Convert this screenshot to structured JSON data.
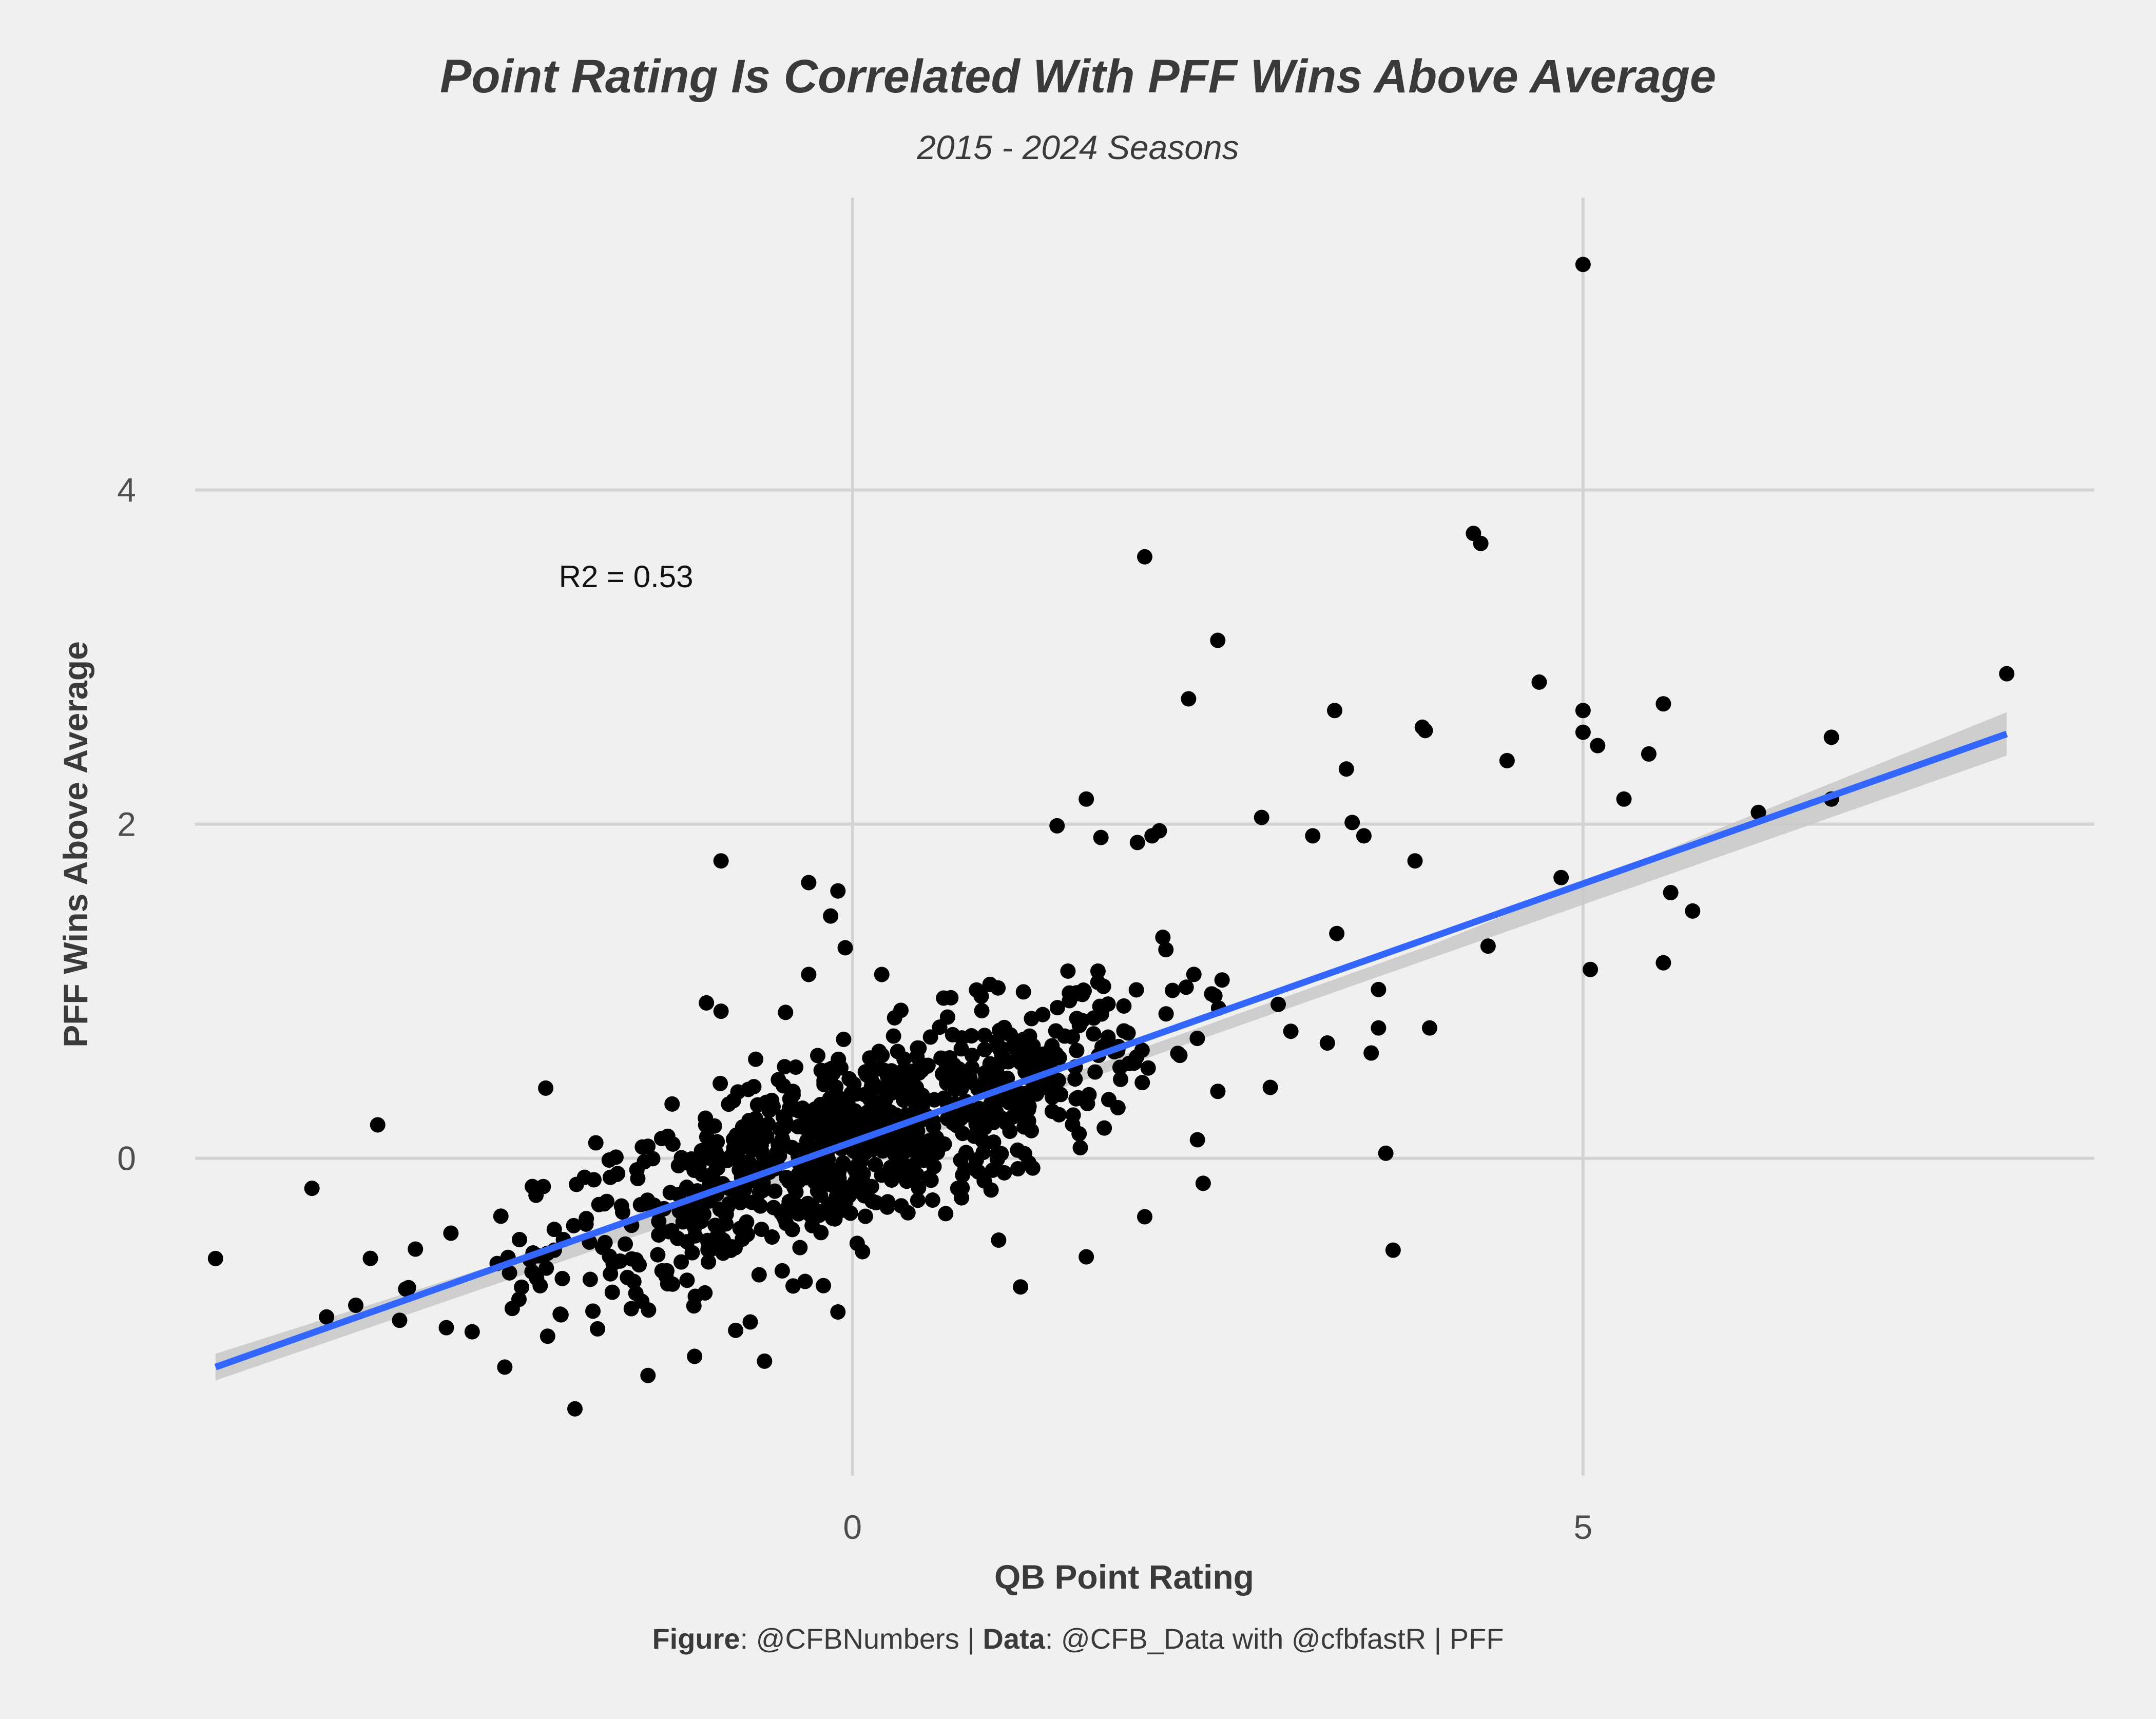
{
  "colors": {
    "background": "#f0f0f0",
    "grid": "#d3d3d3",
    "point": "#000000",
    "fit_line": "#3366ff",
    "confidence_band": "#c8c8c8",
    "title_text": "#3a3a3a",
    "tick_text": "#4d4d4d"
  },
  "caption": {
    "figure_bold": "Figure",
    "figure_text": ": @CFBNumbers | ",
    "data_bold": "Data",
    "data_text": ": @CFB_Data with @cfbfastR | PFF"
  },
  "chart_data": {
    "type": "scatter",
    "title": "Point Rating Is Correlated With PFF Wins Above Average",
    "subtitle": "2015 - 2024 Seasons",
    "xlabel": "QB Point Rating",
    "ylabel": "PFF Wins Above Average",
    "xlim": [
      -4.5,
      8.5
    ],
    "ylim": [
      -1.9,
      5.75
    ],
    "x_ticks": [
      0,
      5
    ],
    "y_ticks": [
      0,
      2,
      4
    ],
    "x_tick_labels": [
      "0",
      "5"
    ],
    "y_tick_labels": [
      "0",
      "2",
      "4"
    ],
    "grid": true,
    "annotation": "R2 = 0.53",
    "annotation_position": [
      -1.55,
      3.48
    ],
    "fit_line": {
      "x": [
        -4.36,
        7.9
      ],
      "y": [
        -1.25,
        2.54
      ]
    },
    "confidence_band": {
      "x": [
        -4.36,
        0,
        4,
        7.9
      ],
      "low": [
        -1.33,
        -0.02,
        1.21,
        2.41
      ],
      "high": [
        -1.17,
        0.04,
        1.29,
        2.67
      ]
    },
    "point_count": 960,
    "highlighted_points": [
      [
        5.0,
        5.35
      ],
      [
        4.25,
        3.74
      ],
      [
        4.3,
        3.68
      ],
      [
        2.0,
        3.6
      ],
      [
        2.5,
        3.1
      ],
      [
        7.9,
        2.9
      ],
      [
        4.7,
        2.85
      ],
      [
        2.3,
        2.75
      ],
      [
        3.3,
        2.68
      ],
      [
        5.0,
        2.68
      ],
      [
        5.55,
        2.72
      ],
      [
        3.9,
        2.58
      ],
      [
        3.92,
        2.56
      ],
      [
        5.0,
        2.55
      ],
      [
        5.1,
        2.47
      ],
      [
        6.7,
        2.52
      ],
      [
        5.45,
        2.42
      ],
      [
        4.48,
        2.38
      ],
      [
        3.38,
        2.33
      ],
      [
        1.6,
        2.15
      ],
      [
        5.28,
        2.15
      ],
      [
        6.7,
        2.15
      ],
      [
        6.2,
        2.07
      ],
      [
        2.8,
        2.04
      ],
      [
        3.42,
        2.01
      ],
      [
        1.4,
        1.99
      ],
      [
        2.1,
        1.96
      ],
      [
        2.05,
        1.93
      ],
      [
        1.7,
        1.92
      ],
      [
        3.5,
        1.93
      ],
      [
        3.15,
        1.93
      ],
      [
        1.95,
        1.89
      ],
      [
        3.85,
        1.78
      ],
      [
        -0.9,
        1.78
      ],
      [
        4.85,
        1.68
      ],
      [
        5.6,
        1.59
      ],
      [
        5.75,
        1.48
      ],
      [
        4.35,
        1.27
      ],
      [
        5.55,
        1.17
      ],
      [
        5.05,
        1.13
      ],
      [
        -2.1,
        0.42
      ],
      [
        -3.25,
        0.2
      ],
      [
        -4.36,
        -0.6
      ],
      [
        -3.7,
        -0.18
      ],
      [
        -3.6,
        -0.95
      ],
      [
        -3.1,
        -0.97
      ],
      [
        -3.4,
        -0.88
      ],
      [
        -1.4,
        -1.3
      ],
      [
        -1.9,
        -1.5
      ],
      [
        -0.8,
        -1.03
      ],
      [
        -0.7,
        -0.98
      ],
      [
        -0.1,
        -0.92
      ],
      [
        1.15,
        -0.77
      ],
      [
        1.6,
        -0.59
      ],
      [
        1.0,
        -0.49
      ],
      [
        2.0,
        -0.35
      ],
      [
        2.4,
        -0.15
      ],
      [
        3.7,
        -0.55
      ],
      [
        3.65,
        0.03
      ],
      [
        3.95,
        0.78
      ],
      [
        3.55,
        0.63
      ],
      [
        3.6,
        0.78
      ],
      [
        3.6,
        1.01
      ],
      [
        3.25,
        0.69
      ],
      [
        3.0,
        0.76
      ],
      [
        -0.3,
        1.65
      ],
      [
        -0.1,
        1.6
      ],
      [
        -0.15,
        1.45
      ],
      [
        -0.05,
        1.26
      ],
      [
        0.2,
        1.1
      ],
      [
        -0.3,
        1.1
      ],
      [
        -1.0,
        0.93
      ],
      [
        -0.9,
        0.88
      ]
    ]
  }
}
